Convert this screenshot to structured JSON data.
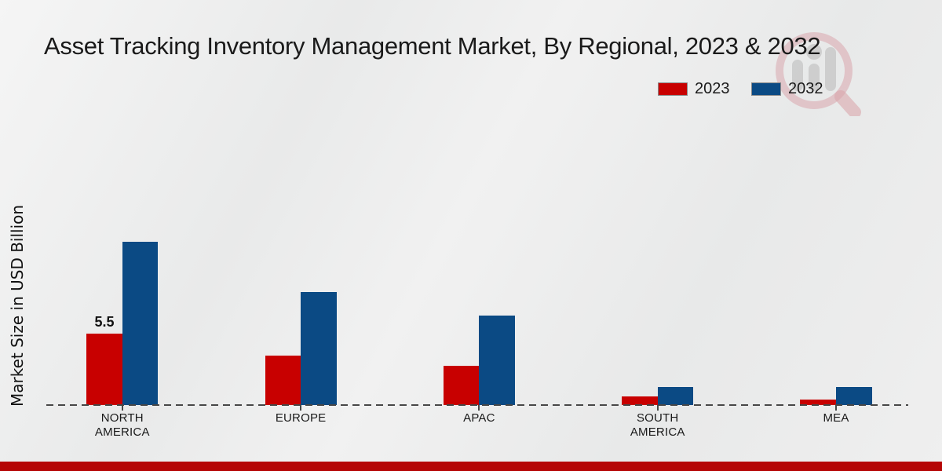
{
  "title": "Asset Tracking Inventory Management Market, By Regional, 2023 & 2032",
  "ylabel": "Market Size in USD Billion",
  "legend": {
    "position": "top-right",
    "items": [
      {
        "label": "2023",
        "color": "#c80000"
      },
      {
        "label": "2032",
        "color": "#0b4a84"
      }
    ]
  },
  "footer": {
    "bar_color": "#b50505"
  },
  "watermark": {
    "name": "market-research-future-logo",
    "ring_color": "#c0394a",
    "bars_color": "#8c8c8c"
  },
  "chart_data": {
    "type": "bar",
    "title": "Asset Tracking Inventory Management Market, By Regional, 2023 & 2032",
    "xlabel": "",
    "ylabel": "Market Size in USD Billion",
    "categories": [
      "NORTH\nAMERICA",
      "EUROPE",
      "APAC",
      "SOUTH\nAMERICA",
      "MEA"
    ],
    "series": [
      {
        "name": "2023",
        "color": "#c80000",
        "values": [
          5.5,
          3.8,
          3.0,
          0.65,
          0.4
        ]
      },
      {
        "name": "2032",
        "color": "#0b4a84",
        "values": [
          12.6,
          8.7,
          6.9,
          1.4,
          1.4
        ]
      }
    ],
    "data_labels": [
      {
        "series_index": 0,
        "category_index": 0,
        "text": "5.5"
      }
    ],
    "ylim": [
      0,
      13.5
    ],
    "grid": false,
    "baseline_style": "dashed",
    "legend_position": "top-right"
  }
}
